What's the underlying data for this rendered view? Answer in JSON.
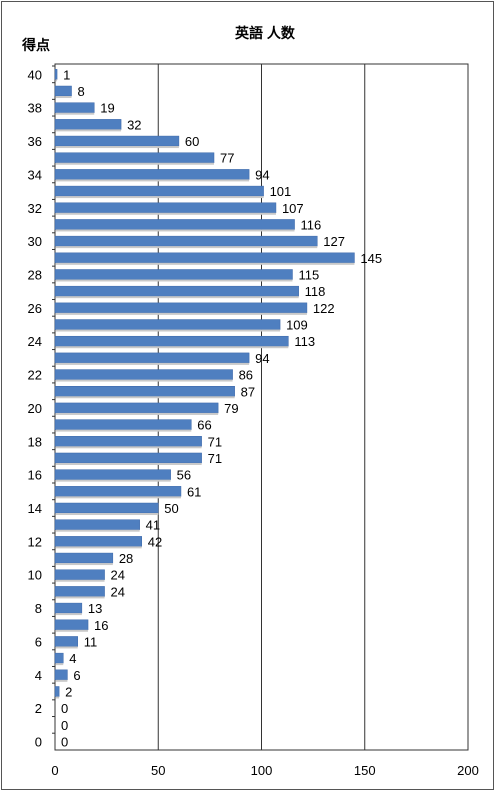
{
  "chart_data": {
    "type": "bar",
    "orientation": "horizontal",
    "title": "英語 人数",
    "ylabel": "得点",
    "xlabel": "",
    "categories": [
      40,
      39,
      38,
      37,
      36,
      35,
      34,
      33,
      32,
      31,
      30,
      29,
      28,
      27,
      26,
      25,
      24,
      23,
      22,
      21,
      20,
      19,
      18,
      17,
      16,
      15,
      14,
      13,
      12,
      11,
      10,
      9,
      8,
      7,
      6,
      5,
      4,
      3,
      2,
      1,
      0
    ],
    "values": [
      1,
      8,
      19,
      32,
      60,
      77,
      94,
      101,
      107,
      116,
      127,
      145,
      115,
      118,
      122,
      109,
      113,
      94,
      86,
      87,
      79,
      66,
      71,
      71,
      56,
      61,
      50,
      41,
      42,
      28,
      24,
      24,
      13,
      16,
      11,
      4,
      6,
      2,
      0,
      0,
      0
    ],
    "y_tick_labels": [
      "40",
      "38",
      "36",
      "34",
      "32",
      "30",
      "28",
      "26",
      "24",
      "22",
      "20",
      "18",
      "16",
      "14",
      "12",
      "10",
      "8",
      "6",
      "4",
      "2",
      "0"
    ],
    "x_tick_labels": [
      "0",
      "50",
      "100",
      "150",
      "200"
    ],
    "xlim": [
      0,
      200
    ],
    "grid": "vertical",
    "legend": "none",
    "bar_color": "#4f7fc0"
  }
}
